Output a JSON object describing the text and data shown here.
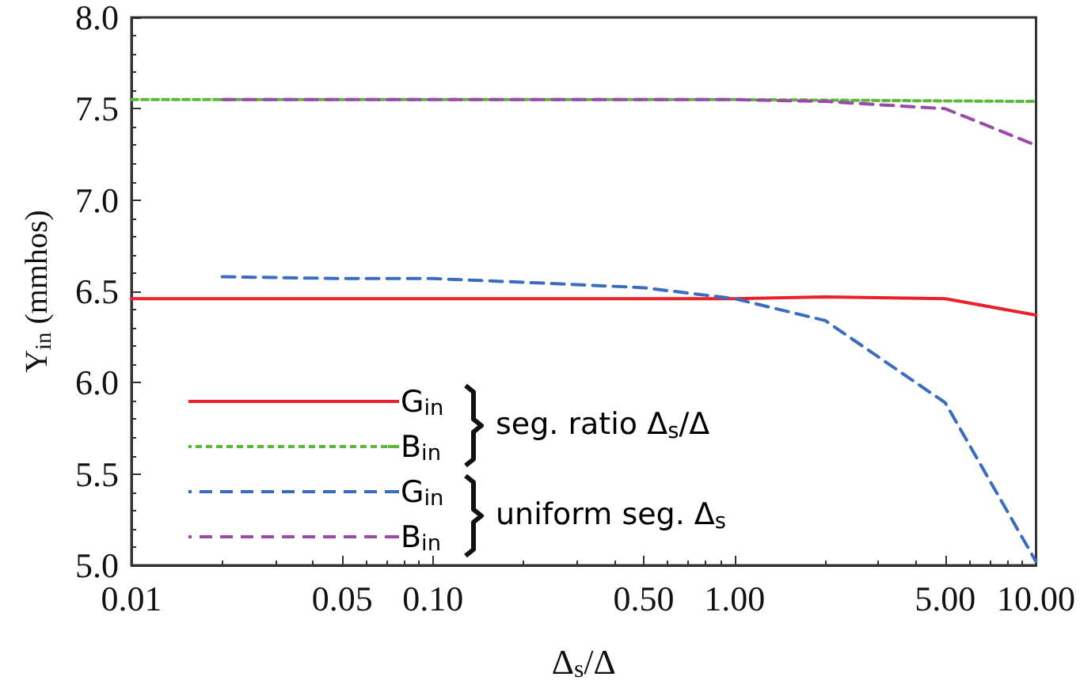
{
  "chart_data": {
    "type": "line",
    "xlabel": "Δ$_{s}$/Δ",
    "ylabel": "Y$_{in}$ (mmhos)",
    "log": "x",
    "xlim": [
      0.01,
      10
    ],
    "xticks": [
      {
        "value": 0.01,
        "label": "0.01"
      },
      {
        "value": 0.05,
        "label": "0.05"
      },
      {
        "value": 0.1,
        "label": "0.10"
      },
      {
        "value": 0.5,
        "label": "0.50"
      },
      {
        "value": 1,
        "label": "1.00"
      },
      {
        "value": 5,
        "label": "5.00"
      },
      {
        "value": 10,
        "label": "10.00"
      }
    ],
    "ylim": [
      5,
      8
    ],
    "yticks": [
      {
        "value": 5,
        "label": "5.0"
      },
      {
        "value": 5.5,
        "label": "5.5"
      },
      {
        "value": 6,
        "label": "6.0"
      },
      {
        "value": 6.5,
        "label": "6.5"
      },
      {
        "value": 7,
        "label": "7.0"
      },
      {
        "value": 7.5,
        "label": "7.5"
      },
      {
        "value": 8,
        "label": "8.0"
      }
    ],
    "grid": false,
    "legend": "bottom left",
    "marker": "none",
    "annotations": [
      "seg. ratio Δ$_{s}$/Δ",
      "uniform seg. Δ$_{s}$"
    ],
    "series": [
      {
        "name": "G$_{in}$",
        "color": "#e8212a",
        "line_style": "solid",
        "x": [
          0.01,
          1,
          2,
          5,
          10
        ],
        "values": [
          6.46,
          6.46,
          6.47,
          6.46,
          6.37
        ]
      },
      {
        "name": "B$_{in}$",
        "color": "#5cb83a",
        "line_style": "dotted",
        "x": [
          0.01,
          1,
          10
        ],
        "values": [
          7.55,
          7.55,
          7.54
        ]
      },
      {
        "name": "G$_{in}$",
        "color": "#3a6cc0",
        "line_style": "dashed",
        "x": [
          0.02,
          0.05,
          0.1,
          0.2,
          0.5,
          1,
          2,
          5,
          10
        ],
        "values": [
          6.58,
          6.57,
          6.57,
          6.55,
          6.52,
          6.46,
          6.34,
          5.89,
          5.02
        ]
      },
      {
        "name": "B$_{in}$",
        "color": "#9a4aa8",
        "line_style": "dashed",
        "x": [
          0.02,
          0.1,
          0.5,
          1,
          2,
          5,
          10
        ],
        "values": [
          7.55,
          7.55,
          7.55,
          7.55,
          7.54,
          7.5,
          7.3
        ]
      }
    ]
  }
}
